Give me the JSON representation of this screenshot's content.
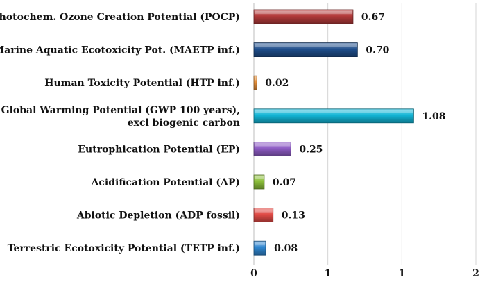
{
  "chart_data": {
    "type": "bar",
    "orientation": "horizontal",
    "title": "",
    "xlabel": "",
    "ylabel": "",
    "xlim": [
      0,
      1.5
    ],
    "grid": true,
    "legend": "none",
    "x_ticks": [
      {
        "value": 0,
        "label": "0"
      },
      {
        "value": 0.5,
        "label": "1"
      },
      {
        "value": 1.0,
        "label": "1"
      },
      {
        "value": 1.5,
        "label": "2"
      }
    ],
    "categories": [
      [
        "Photochem. Ozone Creation Potential (POCP)"
      ],
      [
        "Marine Aquatic Ecotoxicity Pot. (MAETP inf.)"
      ],
      [
        "Human Toxicity Potential (HTP inf.)"
      ],
      [
        "Global Warming Potential (GWP 100 years),",
        "excl biogenic carbon"
      ],
      [
        "Eutrophication Potential (EP)"
      ],
      [
        "Acidification Potential (AP)"
      ],
      [
        "Abiotic Depletion (ADP fossil)"
      ],
      [
        "Terrestric Ecotoxicity Potential (TETP inf.)"
      ]
    ],
    "values": [
      0.67,
      0.7,
      0.02,
      1.08,
      0.25,
      0.07,
      0.13,
      0.08
    ],
    "value_labels": [
      "0.67",
      "0.70",
      "0.02",
      "1.08",
      "0.25",
      "0.07",
      "0.13",
      "0.08"
    ],
    "colors": [
      "#b23a3a",
      "#1f4e8c",
      "#e8913a",
      "#12b5d6",
      "#8e5cc4",
      "#8cbf3a",
      "#e04a45",
      "#2f86cf"
    ]
  }
}
